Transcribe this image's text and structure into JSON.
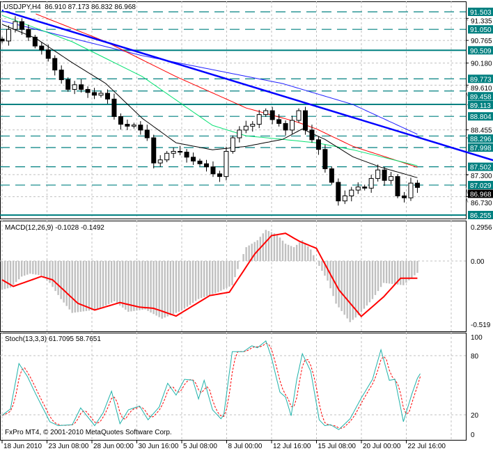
{
  "window": {
    "symbol_info": "USDJPY,H4",
    "ohlc": "86.910 87.173 86.832 86.968",
    "copyright": "FxPro MT4, © 2001-2010 MetaQuotes Software Corp."
  },
  "colors": {
    "candle": "#000000",
    "level_line": "#008080",
    "level_label_bg": "#008080",
    "trendline": "#0000ff",
    "ma_blue": "#2020ff",
    "ma_red": "#ff0000",
    "ma_green": "#00e070",
    "ma_black": "#000000",
    "macd_hist": "#c0c0c0",
    "macd_signal": "#ff0000",
    "stoch_main": "#20b2aa",
    "stoch_signal": "#ff0000",
    "grid": "#c0c0c0",
    "current_price_bg": "#000000"
  },
  "chart_data": [
    {
      "type": "candlestick",
      "title": "USDJPY,H4",
      "ylim": [
        86.16,
        91.6
      ],
      "current_price": "86.968",
      "price_levels": [
        {
          "value": "91.503",
          "style": "dashed"
        },
        {
          "value": "91.050",
          "style": "dashed"
        },
        {
          "value": "90.509",
          "style": "solid"
        },
        {
          "value": "89.773",
          "style": "dashed"
        },
        {
          "value": "89.458",
          "style": "dashed"
        },
        {
          "value": "89.113",
          "style": "solid"
        },
        {
          "value": "88.804",
          "style": "dashed"
        },
        {
          "value": "88.296",
          "style": "dashed"
        },
        {
          "value": "87.998",
          "style": "dashed"
        },
        {
          "value": "87.502",
          "style": "dashed"
        },
        {
          "value": "87.029",
          "style": "dashed"
        },
        {
          "value": "86.255",
          "style": "solid"
        }
      ],
      "price_ticks": [
        "91.335",
        "90.765",
        "90.180",
        "89.610",
        "88.455",
        "87.300",
        "86.730"
      ],
      "closes": [
        90.75,
        91.05,
        91.25,
        91.05,
        90.85,
        90.62,
        90.52,
        90.3,
        90.0,
        89.75,
        89.5,
        89.62,
        89.5,
        89.42,
        89.35,
        89.4,
        89.25,
        88.8,
        88.6,
        88.55,
        88.58,
        88.45,
        88.25,
        87.6,
        87.68,
        87.85,
        87.9,
        87.88,
        87.75,
        87.65,
        87.58,
        87.5,
        87.32,
        87.25,
        87.9,
        88.25,
        88.45,
        88.55,
        88.6,
        88.85,
        88.95,
        88.72,
        88.62,
        88.45,
        88.7,
        88.95,
        88.45,
        88.2,
        87.95,
        87.45,
        87.1,
        86.62,
        86.75,
        86.9,
        86.98,
        86.95,
        87.2,
        87.42,
        87.15,
        87.25,
        86.75,
        86.7,
        87.08,
        86.968
      ],
      "moving_averages": [
        {
          "color": "ma_blue",
          "points": [
            [
              0,
              91.27
            ],
            [
              25,
              90.82
            ],
            [
              50,
              90.37
            ],
            [
              75,
              90.01
            ],
            [
              100,
              89.65
            ],
            [
              125,
              89.11
            ],
            [
              148,
              88.34
            ]
          ]
        },
        {
          "color": "ma_red",
          "points": [
            [
              12,
              91.45
            ],
            [
              37,
              90.73
            ],
            [
              62,
              89.83
            ],
            [
              87,
              89.02
            ],
            [
              105,
              88.66
            ],
            [
              112,
              88.48
            ],
            [
              125,
              88.03
            ],
            [
              148,
              87.49
            ]
          ]
        },
        {
          "color": "ma_green",
          "points": [
            [
              0,
              91.41
            ],
            [
              25,
              90.73
            ],
            [
              50,
              89.83
            ],
            [
              75,
              88.57
            ],
            [
              87,
              88.3
            ],
            [
              100,
              88.21
            ],
            [
              112,
              88.12
            ],
            [
              125,
              87.94
            ],
            [
              148,
              87.53
            ]
          ]
        },
        {
          "color": "ma_black",
          "points": [
            [
              0,
              91.18
            ],
            [
              12,
              90.82
            ],
            [
              25,
              90.19
            ],
            [
              37,
              89.65
            ],
            [
              50,
              88.75
            ],
            [
              62,
              88.12
            ],
            [
              75,
              87.94
            ],
            [
              87,
              88.03
            ],
            [
              100,
              88.21
            ],
            [
              107,
              88.48
            ],
            [
              115,
              88.21
            ],
            [
              125,
              87.76
            ],
            [
              135,
              87.49
            ],
            [
              148,
              87.22
            ]
          ]
        }
      ],
      "trendline": [
        [
          0,
          91.54
        ],
        [
          175,
          87.67
        ]
      ]
    },
    {
      "type": "bar",
      "title": "MACD(12,26,9) -0.1028 -0.1492",
      "ylim": [
        -0.519,
        0.2956
      ],
      "ticks": [
        "0.2956",
        "0.00",
        "-0.519"
      ],
      "histogram": [
        [
          0,
          -0.25
        ],
        [
          3,
          -0.23
        ],
        [
          7,
          -0.135
        ],
        [
          10,
          -0.11
        ],
        [
          14,
          -0.125
        ],
        [
          17,
          -0.19
        ],
        [
          21,
          -0.33
        ],
        [
          25,
          -0.45
        ],
        [
          34,
          -0.42
        ],
        [
          40,
          -0.35
        ],
        [
          45,
          -0.44
        ],
        [
          51,
          -0.42
        ],
        [
          57,
          -0.5
        ],
        [
          64,
          -0.43
        ],
        [
          70,
          -0.33
        ],
        [
          77,
          -0.27
        ],
        [
          82,
          -0.21
        ],
        [
          85,
          0
        ],
        [
          87,
          0.12
        ],
        [
          91,
          0.18
        ],
        [
          94,
          0.27
        ],
        [
          98,
          0.23
        ],
        [
          101,
          0.15
        ],
        [
          104,
          0.12
        ],
        [
          107,
          0.18
        ],
        [
          110,
          0.1
        ],
        [
          112,
          0
        ],
        [
          116,
          -0.17
        ],
        [
          119,
          -0.37
        ],
        [
          124,
          -0.53
        ],
        [
          127,
          -0.47
        ],
        [
          132,
          -0.33
        ],
        [
          136,
          -0.19
        ],
        [
          143,
          -0.21
        ],
        [
          148,
          -0.1028
        ]
      ],
      "signal": [
        [
          0,
          -0.163
        ],
        [
          4,
          -0.22
        ],
        [
          14,
          -0.134
        ],
        [
          18,
          -0.163
        ],
        [
          27,
          -0.367
        ],
        [
          33,
          -0.425
        ],
        [
          42,
          -0.36
        ],
        [
          49,
          -0.4
        ],
        [
          54,
          -0.41
        ],
        [
          62,
          -0.477
        ],
        [
          74,
          -0.3
        ],
        [
          81,
          -0.27
        ],
        [
          90,
          0.06
        ],
        [
          96,
          0.22
        ],
        [
          101,
          0.24
        ],
        [
          106,
          0.17
        ],
        [
          112,
          0.11
        ],
        [
          120,
          -0.25
        ],
        [
          128,
          -0.48
        ],
        [
          136,
          -0.31
        ],
        [
          142,
          -0.1492
        ],
        [
          148,
          -0.1492
        ]
      ]
    },
    {
      "type": "line",
      "title": "Stoch(13,3,3) 61.7095 58.7651",
      "ylim": [
        0,
        100
      ],
      "ticks": [
        "100",
        "80",
        "20",
        "0"
      ],
      "levels": [
        80,
        20
      ],
      "main": [
        [
          0,
          19.4
        ],
        [
          3,
          26
        ],
        [
          6,
          72
        ],
        [
          9,
          59
        ],
        [
          12,
          41
        ],
        [
          17,
          13
        ],
        [
          20,
          9
        ],
        [
          25,
          10
        ],
        [
          28,
          27
        ],
        [
          33,
          9
        ],
        [
          36,
          22
        ],
        [
          39,
          44
        ],
        [
          42,
          11
        ],
        [
          45,
          25
        ],
        [
          49,
          29
        ],
        [
          52,
          15
        ],
        [
          56,
          28
        ],
        [
          59,
          52
        ],
        [
          62,
          40
        ],
        [
          65,
          56
        ],
        [
          68,
          55
        ],
        [
          70,
          36
        ],
        [
          72,
          55
        ],
        [
          75,
          25
        ],
        [
          78,
          16
        ],
        [
          79,
          20
        ],
        [
          82,
          84
        ],
        [
          86,
          84
        ],
        [
          89,
          90
        ],
        [
          91,
          88
        ],
        [
          94,
          95
        ],
        [
          96,
          78
        ],
        [
          99,
          43
        ],
        [
          101,
          38
        ],
        [
          103,
          19
        ],
        [
          105,
          56
        ],
        [
          107,
          82
        ],
        [
          110,
          64
        ],
        [
          113,
          15
        ],
        [
          115,
          9
        ],
        [
          117,
          10
        ],
        [
          120,
          5
        ],
        [
          124,
          16
        ],
        [
          128,
          37
        ],
        [
          132,
          56
        ],
        [
          135,
          86
        ],
        [
          138,
          55
        ],
        [
          140,
          56
        ],
        [
          143,
          13
        ],
        [
          146,
          41
        ],
        [
          148,
          57
        ],
        [
          149,
          61.7095
        ]
      ],
      "signal_last": 58.7651
    }
  ],
  "time_axis": [
    "18 Jun 2010",
    "23 Jun 08:00",
    "28 Jun 00:00",
    "30 Jun 16:00",
    "5 Jul 08:00",
    "8 Jul 00:00",
    "12 Jul 16:00",
    "15 Jul 08:00",
    "20 Jul 00:00",
    "22 Jul 16:00"
  ]
}
